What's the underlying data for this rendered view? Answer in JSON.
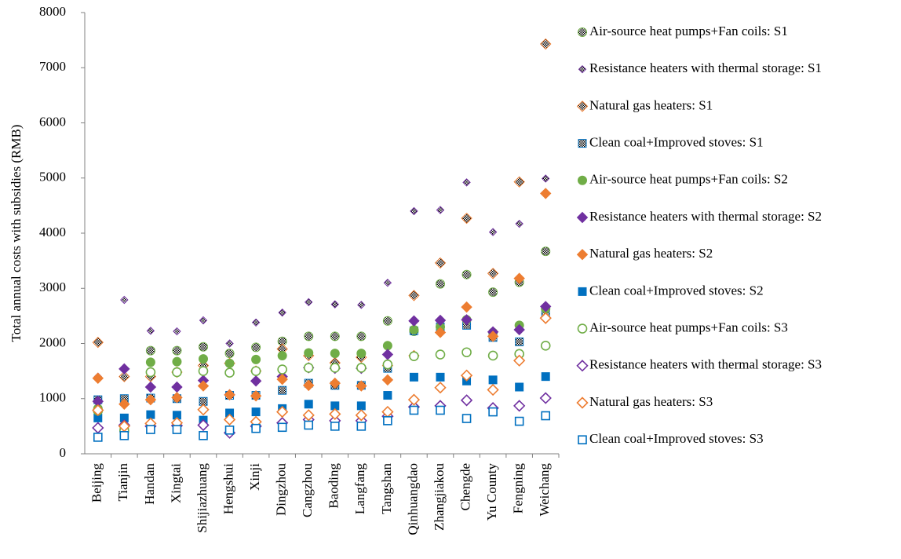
{
  "chart_data": {
    "type": "scatter",
    "y_label": "Total annual costs with subsidies (RMB)",
    "categories": [
      "Beijing",
      "Tianjin",
      "Handan",
      "Xingtai",
      "Shijiazhuang",
      "Hengshui",
      "Xinji",
      "Dingzhou",
      "Cangzhou",
      "Baoding",
      "Langfang",
      "Tangshan",
      "Qinhuangdao",
      "Zhangjiakou",
      "Chengde",
      "Yu County",
      "Fengning",
      "Weichang"
    ],
    "ylim": [
      0,
      8000
    ],
    "yticks": [
      0,
      1000,
      2000,
      3000,
      4000,
      5000,
      6000,
      7000,
      8000
    ],
    "grid": false,
    "legend": "right",
    "series": [
      {
        "name": "Air-source heat pumps+Fan coils: S1",
        "color": "#70ad47",
        "marker": "circle",
        "fill": "pattern",
        "values": [
          800,
          400,
          1870,
          1870,
          1940,
          1820,
          1930,
          2040,
          2130,
          2130,
          2130,
          2410,
          2220,
          3080,
          3250,
          2930,
          3110,
          3670
        ]
      },
      {
        "name": "Resistance heaters with thermal storage: S1",
        "color": "#7030a0",
        "marker": "small-diamond",
        "fill": "pattern",
        "values": [
          1400,
          2790,
          2230,
          2220,
          2420,
          2000,
          2380,
          2560,
          2750,
          2710,
          2700,
          3100,
          4400,
          4420,
          4920,
          4020,
          4170,
          4990
        ]
      },
      {
        "name": "Natural gas heaters: S1",
        "color": "#ed7d31",
        "marker": "diamond",
        "fill": "pattern",
        "values": [
          2020,
          1400,
          1400,
          1480,
          1600,
          1640,
          1500,
          1900,
          1780,
          1650,
          1750,
          1600,
          2870,
          3460,
          4270,
          3270,
          4930,
          7430
        ]
      },
      {
        "name": "Clean coal+Improved stoves: S1",
        "color": "#0070c0",
        "marker": "square",
        "fill": "pattern",
        "values": [
          980,
          1000,
          1010,
          1000,
          950,
          1060,
          1060,
          1150,
          1280,
          1240,
          1240,
          1550,
          2230,
          2300,
          2330,
          2110,
          2030,
          2550
        ]
      },
      {
        "name": "Air-source heat pumps+Fan coils: S2",
        "color": "#70ad47",
        "marker": "circle",
        "fill": "solid",
        "values": [
          820,
          450,
          1660,
          1670,
          1720,
          1640,
          1710,
          1780,
          1830,
          1820,
          1820,
          1960,
          2250,
          2300,
          2430,
          2200,
          2330,
          2630
        ]
      },
      {
        "name": "Resistance heaters with thermal storage: S2",
        "color": "#7030a0",
        "marker": "diamond",
        "fill": "solid",
        "values": [
          950,
          1540,
          1210,
          1210,
          1330,
          1070,
          1320,
          1400,
          1560,
          1550,
          1550,
          1800,
          2410,
          2420,
          2430,
          2210,
          2250,
          2670
        ]
      },
      {
        "name": "Natural gas heaters: S2",
        "color": "#ed7d31",
        "marker": "diamond",
        "fill": "solid",
        "values": [
          1370,
          900,
          980,
          1020,
          1230,
          1070,
          1050,
          1350,
          1240,
          1280,
          1230,
          1340,
          1780,
          2200,
          2660,
          2130,
          3180,
          4720
        ]
      },
      {
        "name": "Clean coal+Improved stoves: S2",
        "color": "#0070c0",
        "marker": "square",
        "fill": "solid",
        "values": [
          650,
          650,
          710,
          700,
          610,
          740,
          760,
          820,
          900,
          870,
          870,
          1060,
          1390,
          1390,
          1320,
          1340,
          1210,
          1400
        ]
      },
      {
        "name": "Air-source heat pumps+Fan coils: S3",
        "color": "#70ad47",
        "marker": "circle",
        "fill": "open",
        "values": [
          780,
          420,
          1480,
          1480,
          1500,
          1470,
          1500,
          1530,
          1560,
          1560,
          1560,
          1620,
          1770,
          1800,
          1840,
          1780,
          1810,
          1960
        ]
      },
      {
        "name": "Resistance heaters with thermal storage: S3",
        "color": "#7030a0",
        "marker": "diamond",
        "fill": "open",
        "values": [
          470,
          520,
          500,
          510,
          520,
          380,
          500,
          560,
          620,
          600,
          600,
          680,
          850,
          870,
          970,
          830,
          870,
          1010
        ]
      },
      {
        "name": "Natural gas heaters: S3",
        "color": "#ed7d31",
        "marker": "diamond",
        "fill": "open",
        "values": [
          790,
          500,
          550,
          560,
          800,
          620,
          580,
          760,
          700,
          720,
          700,
          760,
          980,
          1200,
          1420,
          1160,
          1690,
          2460
        ]
      },
      {
        "name": "Clean coal+Improved stoves: S3",
        "color": "#0070c0",
        "marker": "square",
        "fill": "open",
        "values": [
          300,
          330,
          440,
          440,
          330,
          430,
          460,
          480,
          520,
          500,
          500,
          600,
          790,
          790,
          640,
          760,
          590,
          690
        ]
      }
    ]
  }
}
